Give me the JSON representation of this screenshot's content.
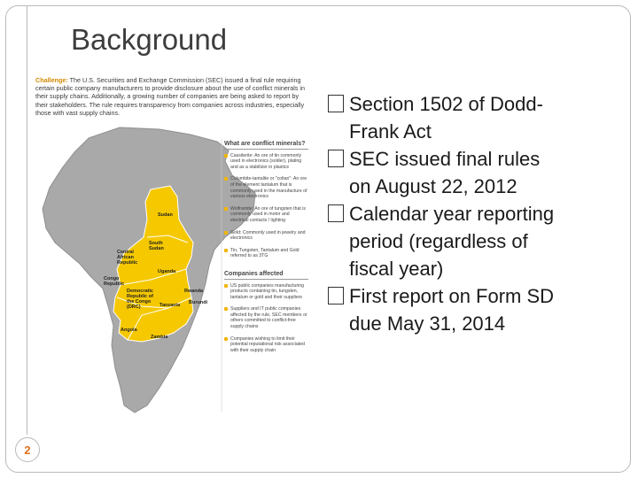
{
  "slide": {
    "title": "Background",
    "page_number": "2"
  },
  "infographic": {
    "challenge_label": "Challenge:",
    "challenge_text": "The U.S. Securities and Exchange Commission (SEC) issued a final rule requiring certain public company manufacturers to provide disclosure about the use of conflict minerals in their supply chains. Additionally, a growing number of companies are being asked to report by their stakeholders. The rule requires transparency from companies across industries, especially those with vast supply chains.",
    "panel1_heading": "What are conflict minerals?",
    "panel1_items": [
      "Cassiterite: An ore of tin commonly used in electronics (solder), plating and as a stabilizer in plastics",
      "Columbite-tantalite or \"coltan\": An ore of the element tantalum that is commonly used in the manufacture of various electronics",
      "Wolframite: An ore of tungsten that is commonly used in motor and electrical contacts / lighting",
      "Gold: Commonly used in jewelry and electronics",
      "Tin, Tungsten, Tantalum and Gold referred to as 3TG"
    ],
    "panel2_heading": "Companies affected",
    "panel2_items": [
      "US public companies manufacturing products containing tin, tungsten, tantalum or gold and their suppliers",
      "Suppliers and IT public companies affected by the rule, SEC members or others committed to conflict-free supply chains",
      "Companies wishing to limit their potential reputational risk associated with their supply chain"
    ],
    "map_labels": [
      "Sudan",
      "South Sudan",
      "Central African Republic",
      "Uganda",
      "Congo Republic",
      "Democratic Republic of the Congo (DRC)",
      "Rwanda",
      "Burundi",
      "Tanzania",
      "Angola",
      "Zambia"
    ]
  },
  "bullets": [
    {
      "line1": "Section 1502 of Dodd-",
      "line2": "Frank Act"
    },
    {
      "line1": "SEC issued final rules",
      "line2": "on August 22, 2012"
    },
    {
      "line1": "Calendar year reporting",
      "line2": "period (regardless of",
      "line3": "fiscal year)"
    },
    {
      "line1": "First report on Form SD",
      "line2": "due May 31, 2014"
    }
  ],
  "colors": {
    "map_land": "#a9a9a9",
    "highlight": "#f5c800",
    "accent": "#e0701f"
  }
}
